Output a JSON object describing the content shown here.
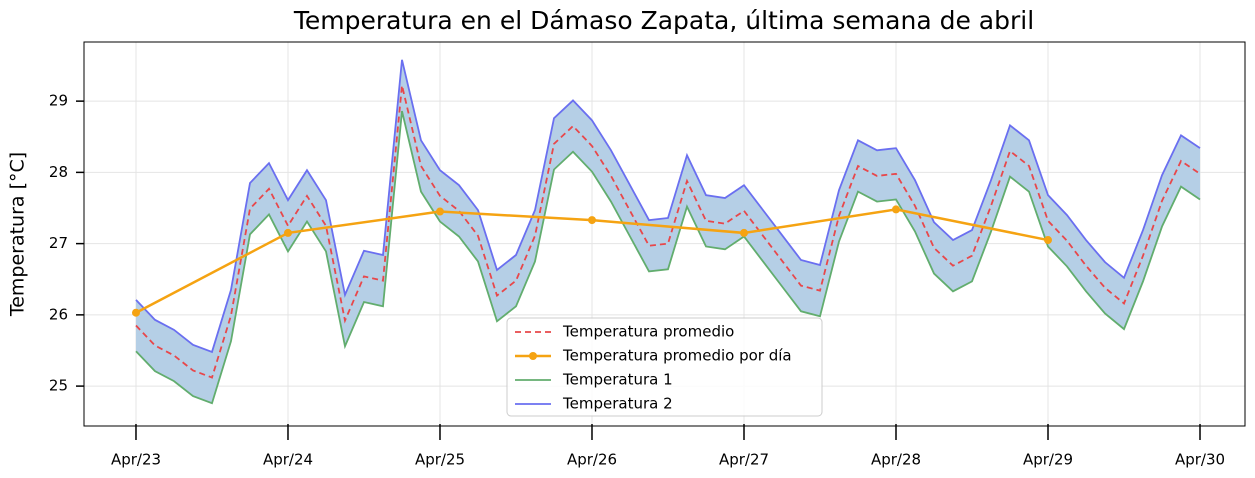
{
  "chart_data": {
    "type": "line",
    "title": "Temperatura en el Dámaso Zapata, última semana de abril",
    "ylabel": "Temperatura [°C]",
    "xlim": [
      -0.342,
      7.296
    ],
    "xticks": [
      {
        "value": 0,
        "label": "Apr/23"
      },
      {
        "value": 1,
        "label": "Apr/24"
      },
      {
        "value": 2,
        "label": "Apr/25"
      },
      {
        "value": 3,
        "label": "Apr/26"
      },
      {
        "value": 4,
        "label": "Apr/27"
      },
      {
        "value": 5,
        "label": "Apr/28"
      },
      {
        "value": 6,
        "label": "Apr/29"
      },
      {
        "value": 7,
        "label": "Apr/30"
      }
    ],
    "ylim": [
      24.44,
      29.83
    ],
    "yticks": [
      25,
      26,
      27,
      28,
      29
    ],
    "grid": true,
    "legend": "lower center",
    "fill_between": {
      "color": "#b5cfe6"
    },
    "series": [
      {
        "name": "Temperatura promedio",
        "color": "#e8474a",
        "dash": true,
        "x": [
          0,
          0.125,
          0.25,
          0.375,
          0.5,
          0.625,
          0.75,
          0.875,
          1,
          1.125,
          1.25,
          1.375,
          1.5,
          1.625,
          1.75,
          1.875,
          2,
          2.125,
          2.25,
          2.375,
          2.5,
          2.625,
          2.75,
          2.875,
          3,
          3.125,
          3.25,
          3.375,
          3.5,
          3.625,
          3.75,
          3.875,
          4,
          4.125,
          4.25,
          4.375,
          4.5,
          4.625,
          4.75,
          4.875,
          5,
          5.125,
          5.25,
          5.375,
          5.5,
          5.625,
          5.75,
          5.875,
          6,
          6.125,
          6.25,
          6.375,
          6.5,
          6.625,
          6.75,
          6.875,
          7
        ],
        "values": [
          25.85,
          25.57,
          25.43,
          25.22,
          25.12,
          25.99,
          27.49,
          27.77,
          27.25,
          27.67,
          27.25,
          25.92,
          26.54,
          26.48,
          29.22,
          28.09,
          27.67,
          27.46,
          27.11,
          26.27,
          26.48,
          27.11,
          28.4,
          28.65,
          28.37,
          27.95,
          27.46,
          26.97,
          27.0,
          27.88,
          27.32,
          27.28,
          27.46,
          27.11,
          26.76,
          26.41,
          26.34,
          27.39,
          28.09,
          27.95,
          27.98,
          27.53,
          26.94,
          26.69,
          26.83,
          27.53,
          28.3,
          28.09,
          27.32,
          27.04,
          26.69,
          26.38,
          26.16,
          26.83,
          27.6,
          28.16,
          27.98
        ]
      },
      {
        "name": "Temperatura promedio por día",
        "color": "#f5a312",
        "markers": true,
        "x": [
          0,
          1,
          2,
          3,
          4,
          5,
          6
        ],
        "values": [
          26.03,
          27.15,
          27.45,
          27.33,
          27.15,
          27.48,
          27.05
        ]
      },
      {
        "name": "Temperatura 1",
        "color": "#62ad6e",
        "x": [
          0,
          0.125,
          0.25,
          0.375,
          0.5,
          0.625,
          0.75,
          0.875,
          1,
          1.125,
          1.25,
          1.375,
          1.5,
          1.625,
          1.75,
          1.875,
          2,
          2.125,
          2.25,
          2.375,
          2.5,
          2.625,
          2.75,
          2.875,
          3,
          3.125,
          3.25,
          3.375,
          3.5,
          3.625,
          3.75,
          3.875,
          4,
          4.125,
          4.25,
          4.375,
          4.5,
          4.625,
          4.75,
          4.875,
          5,
          5.125,
          5.25,
          5.375,
          5.5,
          5.625,
          5.75,
          5.875,
          6,
          6.125,
          6.25,
          6.375,
          6.5,
          6.625,
          6.75,
          6.875,
          7
        ],
        "values": [
          25.49,
          25.21,
          25.07,
          24.86,
          24.76,
          25.63,
          27.13,
          27.41,
          26.89,
          27.31,
          26.89,
          25.56,
          26.18,
          26.12,
          28.86,
          27.73,
          27.31,
          27.1,
          26.75,
          25.91,
          26.12,
          26.75,
          28.04,
          28.29,
          28.01,
          27.59,
          27.1,
          26.61,
          26.64,
          27.52,
          26.96,
          26.92,
          27.1,
          26.75,
          26.4,
          26.05,
          25.98,
          27.03,
          27.73,
          27.59,
          27.62,
          27.17,
          26.58,
          26.33,
          26.47,
          27.17,
          27.94,
          27.73,
          26.96,
          26.68,
          26.33,
          26.02,
          25.8,
          26.47,
          27.24,
          27.8,
          27.62
        ]
      },
      {
        "name": "Temperatura 2",
        "color": "#6a6ff0",
        "x": [
          0,
          0.125,
          0.25,
          0.375,
          0.5,
          0.625,
          0.75,
          0.875,
          1,
          1.125,
          1.25,
          1.375,
          1.5,
          1.625,
          1.75,
          1.875,
          2,
          2.125,
          2.25,
          2.375,
          2.5,
          2.625,
          2.75,
          2.875,
          3,
          3.125,
          3.25,
          3.375,
          3.5,
          3.625,
          3.75,
          3.875,
          4,
          4.125,
          4.25,
          4.375,
          4.5,
          4.625,
          4.75,
          4.875,
          5,
          5.125,
          5.25,
          5.375,
          5.5,
          5.625,
          5.75,
          5.875,
          6,
          6.125,
          6.25,
          6.375,
          6.5,
          6.625,
          6.75,
          6.875,
          7
        ],
        "values": [
          26.21,
          25.93,
          25.79,
          25.58,
          25.48,
          26.35,
          27.85,
          28.13,
          27.61,
          28.03,
          27.61,
          26.28,
          26.9,
          26.84,
          29.58,
          28.45,
          28.03,
          27.82,
          27.47,
          26.63,
          26.84,
          27.47,
          28.76,
          29.01,
          28.73,
          28.31,
          27.82,
          27.33,
          27.36,
          28.24,
          27.68,
          27.64,
          27.82,
          27.47,
          27.12,
          26.77,
          26.7,
          27.75,
          28.45,
          28.31,
          28.34,
          27.89,
          27.3,
          27.05,
          27.19,
          27.89,
          28.66,
          28.45,
          27.68,
          27.4,
          27.05,
          26.74,
          26.52,
          27.19,
          27.96,
          28.52,
          28.34
        ]
      }
    ]
  }
}
